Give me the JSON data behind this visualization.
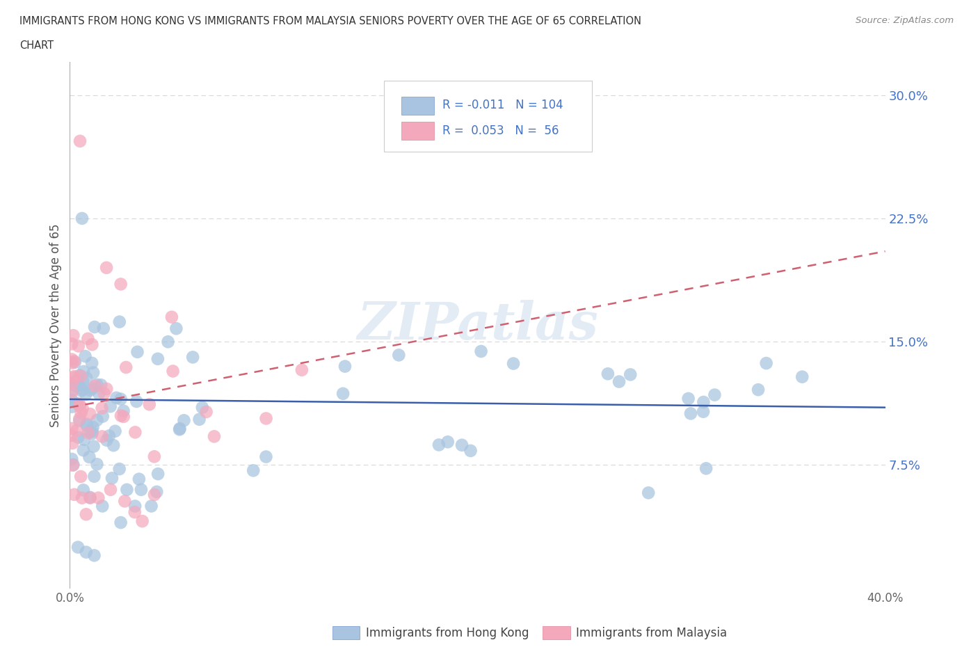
{
  "title_line1": "IMMIGRANTS FROM HONG KONG VS IMMIGRANTS FROM MALAYSIA SENIORS POVERTY OVER THE AGE OF 65 CORRELATION",
  "title_line2": "CHART",
  "source": "Source: ZipAtlas.com",
  "ylabel": "Seniors Poverty Over the Age of 65",
  "xlim": [
    0.0,
    0.4
  ],
  "ylim": [
    0.0,
    0.32
  ],
  "xtick_labels": [
    "0.0%",
    "",
    "",
    "",
    "40.0%"
  ],
  "ytick_labels": [
    "7.5%",
    "15.0%",
    "22.5%",
    "30.0%"
  ],
  "yticks": [
    0.075,
    0.15,
    0.225,
    0.3
  ],
  "hk_R": -0.011,
  "hk_N": 104,
  "my_R": 0.053,
  "my_N": 56,
  "hk_color": "#a8c4e0",
  "my_color": "#f4a8bc",
  "hk_line_color": "#3a5eaa",
  "my_line_color": "#d06070",
  "watermark": "ZIPatlas",
  "legend_label_hk": "Immigrants from Hong Kong",
  "legend_label_my": "Immigrants from Malaysia",
  "background_color": "#ffffff",
  "grid_color": "#d8d8d8"
}
